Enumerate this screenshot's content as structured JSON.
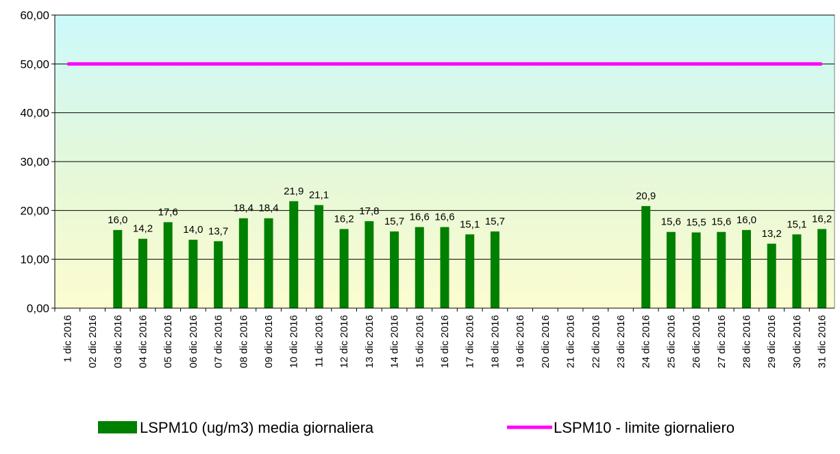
{
  "chart_data": {
    "type": "bar",
    "categories": [
      "1 dic 2016",
      "02 dic 2016",
      "03 dic 2016",
      "04 dic 2016",
      "05 dic 2016",
      "06 dic 2016",
      "07 dic 2016",
      "08 dic 2016",
      "09 dic 2016",
      "10 dic 2016",
      "11 dic 2016",
      "12 dic 2016",
      "13 dic 2016",
      "14 dic 2016",
      "15 dic 2016",
      "16 dic 2016",
      "17 dic 2016",
      "18 dic 2016",
      "19 dic 2016",
      "20 dic 2016",
      "21 dic 2016",
      "22 dic 2016",
      "23 dic 2016",
      "24 dic 2016",
      "25 dic 2016",
      "26 dic 2016",
      "27 dic 2016",
      "28 dic 2016",
      "29 dic 2016",
      "30 dic 2016",
      "31 dic 2016"
    ],
    "series": [
      {
        "name": "LSPM10 (ug/m3) media giornaliera",
        "type": "bar",
        "color": "#008000",
        "values": [
          null,
          null,
          16.0,
          14.2,
          17.6,
          14.0,
          13.7,
          18.4,
          18.4,
          21.9,
          21.1,
          16.2,
          17.8,
          15.7,
          16.6,
          16.6,
          15.1,
          15.7,
          null,
          null,
          null,
          null,
          null,
          20.9,
          15.6,
          15.5,
          15.6,
          16.0,
          13.2,
          15.1,
          16.2
        ],
        "value_labels": [
          null,
          null,
          "16,0",
          "14,2",
          "17,6",
          "14,0",
          "13,7",
          "18,4",
          "18,4",
          "21,9",
          "21,1",
          "16,2",
          "17,8",
          "15,7",
          "16,6",
          "16,6",
          "15,1",
          "15,7",
          null,
          null,
          null,
          null,
          null,
          "20,9",
          "15,6",
          "15,5",
          "15,6",
          "16,0",
          "13,2",
          "15,1",
          "16,2"
        ]
      },
      {
        "name": "LSPM10 - limite giornaliero",
        "type": "line",
        "color": "#FF00FF",
        "values": [
          50,
          50,
          50,
          50,
          50,
          50,
          50,
          50,
          50,
          50,
          50,
          50,
          50,
          50,
          50,
          50,
          50,
          50,
          50,
          50,
          50,
          50,
          50,
          50,
          50,
          50,
          50,
          50,
          50,
          50,
          50
        ]
      }
    ],
    "ylim": [
      0,
      60
    ],
    "yticks": [
      {
        "value": 0,
        "label": "0,00"
      },
      {
        "value": 10,
        "label": "10,00"
      },
      {
        "value": 20,
        "label": "20,00"
      },
      {
        "value": 30,
        "label": "30,00"
      },
      {
        "value": 40,
        "label": "40,00"
      },
      {
        "value": 50,
        "label": "50,00"
      },
      {
        "value": 60,
        "label": "60,00"
      }
    ],
    "grid": true
  }
}
